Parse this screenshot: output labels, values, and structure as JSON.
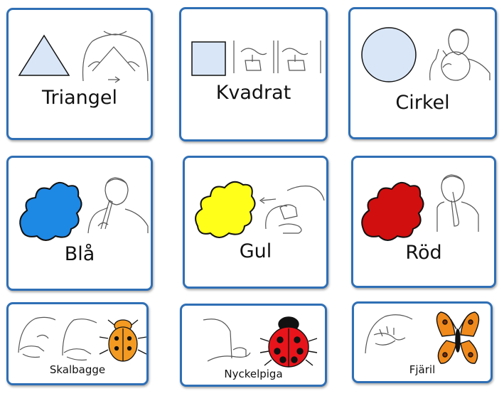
{
  "cards": [
    {
      "label": "Triangel"
    },
    {
      "label": "Kvadrat"
    },
    {
      "label": "Cirkel"
    },
    {
      "label": "Blå"
    },
    {
      "label": "Gul"
    },
    {
      "label": "Röd"
    },
    {
      "label": "Skalbagge"
    },
    {
      "label": "Nyckelpiga"
    },
    {
      "label": "Fjäril"
    }
  ],
  "colors": {
    "border": "#2f6fb5",
    "shape_fill": "#d9e6f7",
    "blue": "#1e88e5",
    "yellow": "#ffff1a",
    "red": "#d10f0f",
    "beetle": "#f39a22",
    "ladybug": "#e8141b",
    "butterfly": "#f08a1c"
  },
  "icons": [
    "triangle-icon",
    "square-icon",
    "circle-icon",
    "blue-blob-icon",
    "yellow-blob-icon",
    "red-blob-icon",
    "beetle-icon",
    "ladybug-icon",
    "butterfly-icon",
    "sign-language-icon"
  ]
}
